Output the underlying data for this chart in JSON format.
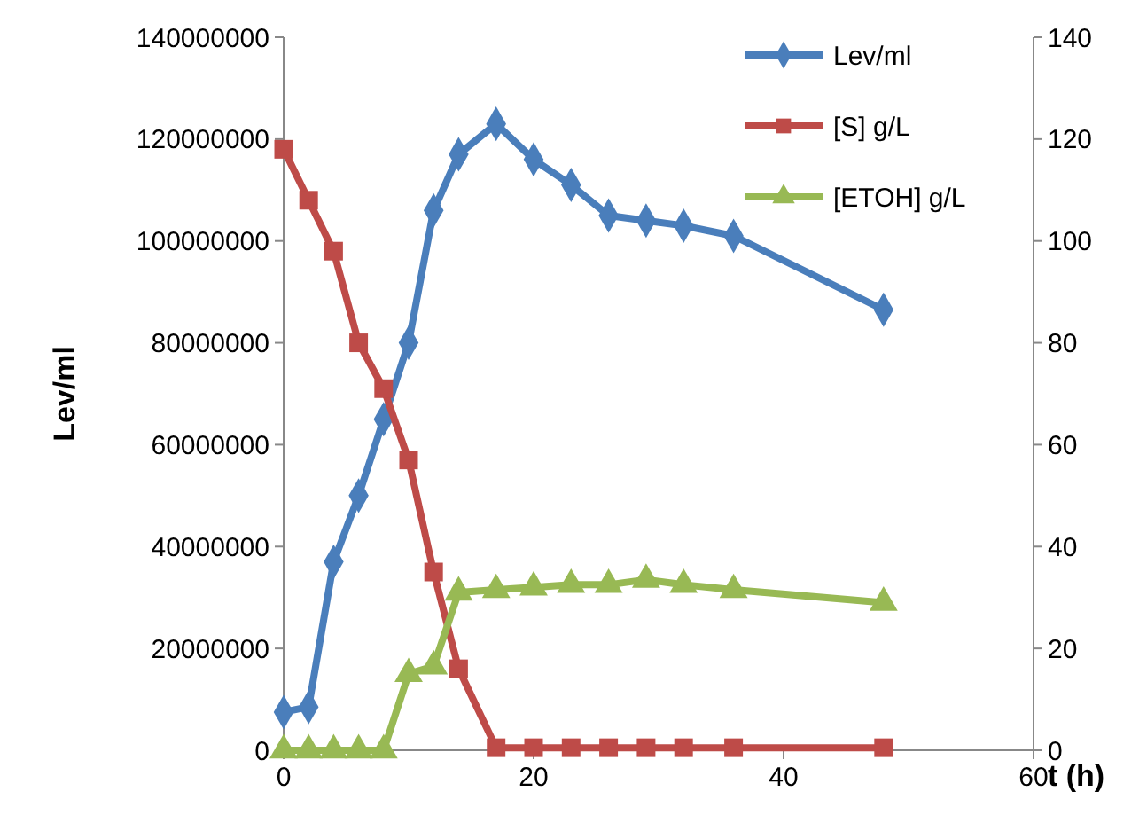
{
  "chart_data": {
    "type": "line",
    "xlabel": "t (h)",
    "ylabel": "Lev/ml",
    "x": [
      0,
      2,
      4,
      6,
      8,
      10,
      12,
      14,
      17,
      20,
      23,
      26,
      29,
      32,
      36,
      48
    ],
    "series": [
      {
        "name": "Lev/ml",
        "color": "#4a7ebb",
        "marker": "diamond",
        "values": [
          7500000,
          8500000,
          37000000,
          50000000,
          65000000,
          80000000,
          106000000,
          117000000,
          123000000,
          116000000,
          111000000,
          105000000,
          104000000,
          103000000,
          101000000,
          86500000
        ]
      },
      {
        "name": "[S] g/L",
        "color": "#be4b48",
        "marker": "square",
        "axis": "y2",
        "values": [
          118,
          108,
          98,
          80,
          71,
          57,
          35,
          16,
          0.5,
          0.5,
          0.5,
          0.5,
          0.5,
          0.5,
          0.5,
          0.5
        ]
      },
      {
        "name": "[ETOH] g/L",
        "color": "#98b954",
        "marker": "triangle",
        "axis": "y2",
        "values": [
          0,
          0,
          0,
          0,
          0,
          15,
          16.5,
          31,
          31.5,
          32,
          32.5,
          32.5,
          33.5,
          32.5,
          31.5,
          29
        ]
      }
    ],
    "xlim": [
      0,
      60
    ],
    "xticks": [
      0,
      20,
      40,
      60
    ],
    "ylim": [
      0,
      140000000
    ],
    "yticks": [
      0,
      20000000,
      40000000,
      60000000,
      80000000,
      100000000,
      120000000,
      140000000
    ],
    "y2lim": [
      0,
      140
    ],
    "y2ticks": [
      0,
      20,
      40,
      60,
      80,
      100,
      120,
      140
    ],
    "grid": false,
    "legend": "top right"
  }
}
